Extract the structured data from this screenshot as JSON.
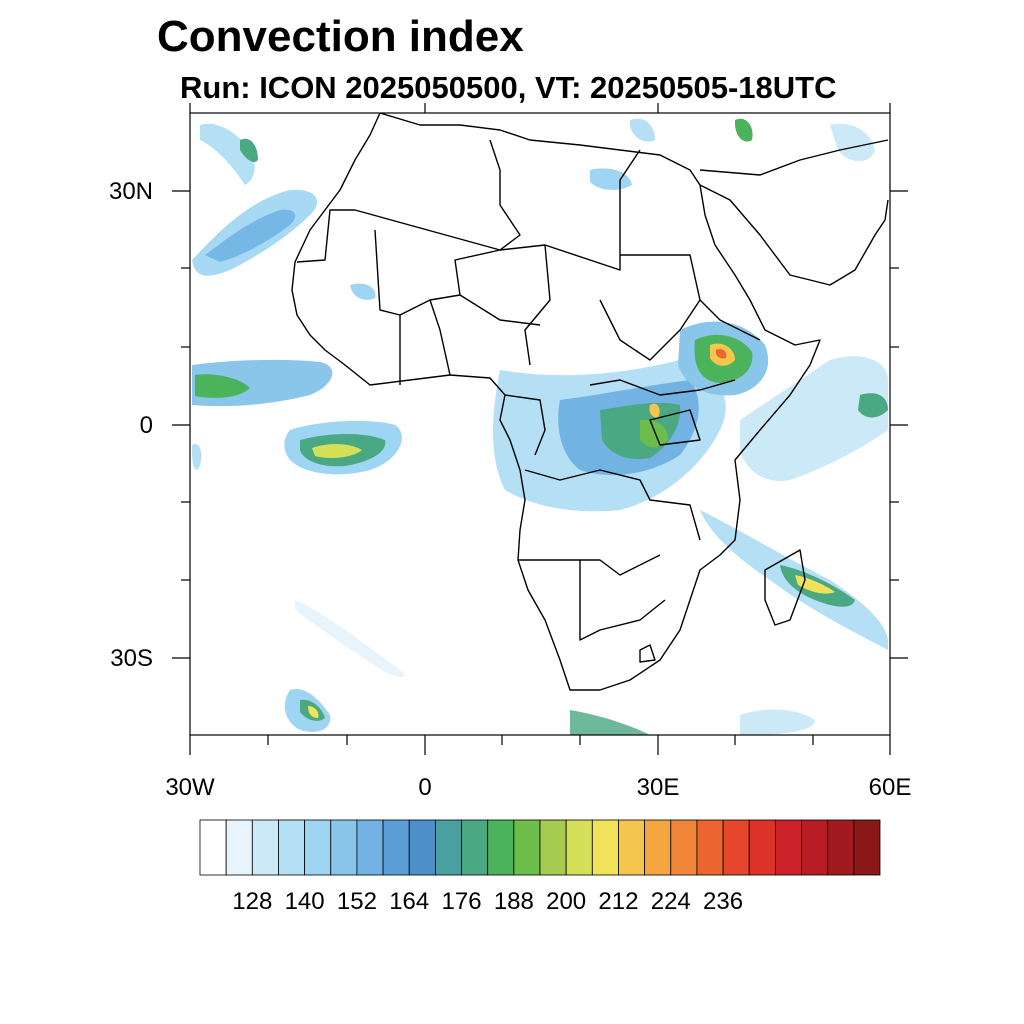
{
  "title": "Convection index",
  "subtitle": "Run: ICON 2025050500,  VT: 20250505-18UTC",
  "axes": {
    "y_ticks": [
      "30N",
      "0",
      "30S"
    ],
    "x_ticks": [
      "30W",
      "0",
      "30E",
      "60E"
    ]
  },
  "colorbar": {
    "labels": [
      "128",
      "140",
      "152",
      "164",
      "176",
      "188",
      "200",
      "212",
      "224",
      "236"
    ],
    "colors": [
      "#ffffff",
      "#e8f4fb",
      "#cce9f7",
      "#b4dff5",
      "#9dd5f3",
      "#8ac6ea",
      "#72b3e3",
      "#5b9fd6",
      "#4d8fc8",
      "#4aa0a0",
      "#4aa883",
      "#4bb35b",
      "#6cbd4a",
      "#a5cc4f",
      "#d6df58",
      "#f0e35a",
      "#f6c54d",
      "#f5a640",
      "#f28638",
      "#ec6530",
      "#e4472b",
      "#dc3228",
      "#cb2128",
      "#b81c24",
      "#a01a20",
      "#8a1818"
    ]
  }
}
